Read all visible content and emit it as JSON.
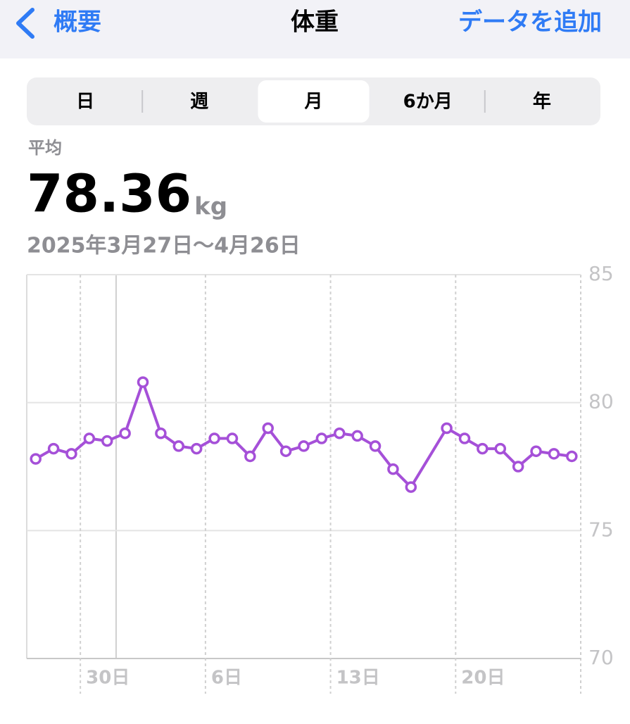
{
  "header": {
    "back": "概要",
    "title": "体重",
    "action": "データを追加"
  },
  "segments": [
    "日",
    "週",
    "月",
    "6か月",
    "年"
  ],
  "selected_segment": 2,
  "summary": {
    "label": "平均",
    "value": 78.36,
    "unit": "kg",
    "range": "2025年3月27日〜4月26日"
  },
  "chart_data": {
    "type": "line",
    "categories": [
      null,
      null,
      null,
      "30日",
      null,
      null,
      null,
      null,
      null,
      null,
      "6日",
      null,
      null,
      null,
      null,
      null,
      null,
      "13日",
      null,
      null,
      null,
      null,
      null,
      null,
      "20日",
      null,
      null,
      null,
      null,
      null,
      null
    ],
    "series": [
      {
        "color": "#a550d8",
        "values": [
          77.8,
          78.2,
          78.0,
          78.6,
          78.5,
          78.8,
          80.8,
          78.8,
          78.3,
          78.2,
          78.6,
          78.6,
          77.9,
          79.0,
          78.1,
          78.3,
          78.6,
          78.8,
          78.7,
          78.3,
          77.4,
          76.7,
          null,
          79.0,
          78.6,
          78.2,
          78.2,
          77.5,
          78.1,
          78.0,
          77.9
        ]
      }
    ],
    "ylim": [
      70,
      85
    ],
    "yticks": [
      70,
      75,
      80,
      85
    ],
    "grid": true
  }
}
